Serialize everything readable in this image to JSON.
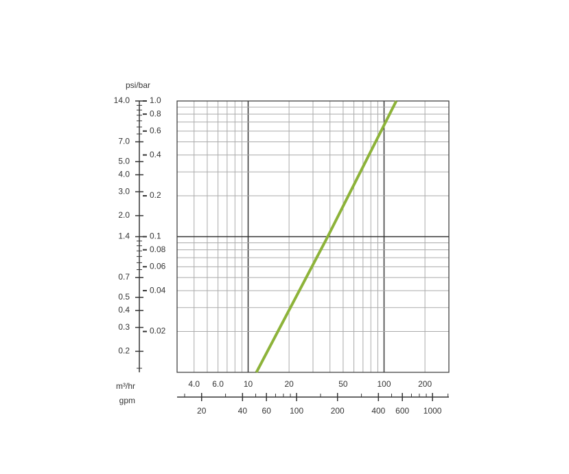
{
  "chart_data": {
    "type": "line",
    "log_scale": true,
    "y_label": "psi/bar",
    "x_label": "m³/hr",
    "x2_label": "gpm",
    "series": [
      {
        "color": "#8db33a",
        "x": [
          11.5,
          38.5,
          123
        ],
        "values": [
          0.01,
          0.1,
          1.0
        ]
      }
    ],
    "xlim": [
      3,
      300
    ],
    "ylim": [
      0.01,
      1.0
    ],
    "xticks": [
      {
        "value": 4,
        "label": "4.0"
      },
      {
        "value": 6,
        "label": "6.0"
      },
      10,
      20,
      50,
      100,
      200
    ],
    "xgrid": [
      3,
      4,
      5,
      6,
      7,
      8,
      9,
      10,
      20,
      30,
      40,
      50,
      60,
      70,
      80,
      90,
      100,
      200,
      300
    ],
    "xmajor": [
      10,
      100
    ],
    "yticks": [
      {
        "value": 1.0,
        "label": "1.0"
      },
      0.8,
      0.6,
      0.4,
      0.2,
      0.1,
      0.08,
      0.06,
      0.04,
      0.02
    ],
    "ygrid": [
      0.01,
      0.02,
      0.03,
      0.04,
      0.05,
      0.06,
      0.07,
      0.08,
      0.09,
      0.1,
      0.2,
      0.3,
      0.4,
      0.5,
      0.6,
      0.7,
      0.8,
      0.9,
      1.0
    ],
    "ymajor": [
      0.1
    ],
    "y2lim": [
      0.14,
      14.0
    ],
    "y2ticks": [
      {
        "value": 14,
        "label": "14.0"
      },
      {
        "value": 7,
        "label": "7.0"
      },
      {
        "value": 5,
        "label": "5.0"
      },
      {
        "value": 4,
        "label": "4.0"
      },
      {
        "value": 3,
        "label": "3.0"
      },
      {
        "value": 2,
        "label": "2.0"
      },
      1.4,
      0.7,
      0.5,
      0.4,
      0.3,
      0.2
    ],
    "y2minor": [
      8,
      9,
      10,
      11,
      12,
      13,
      0.8,
      0.9,
      1.0,
      1.1,
      1.2,
      1.3,
      0.15
    ],
    "x2lim": [
      13.2,
      1320
    ],
    "x2ticks": [
      20,
      40,
      60,
      100,
      200,
      400,
      600,
      1000
    ],
    "x2minor": [
      15,
      30,
      50,
      70,
      80,
      90,
      150,
      300,
      500,
      700,
      800,
      900,
      1300
    ],
    "grid": true
  }
}
